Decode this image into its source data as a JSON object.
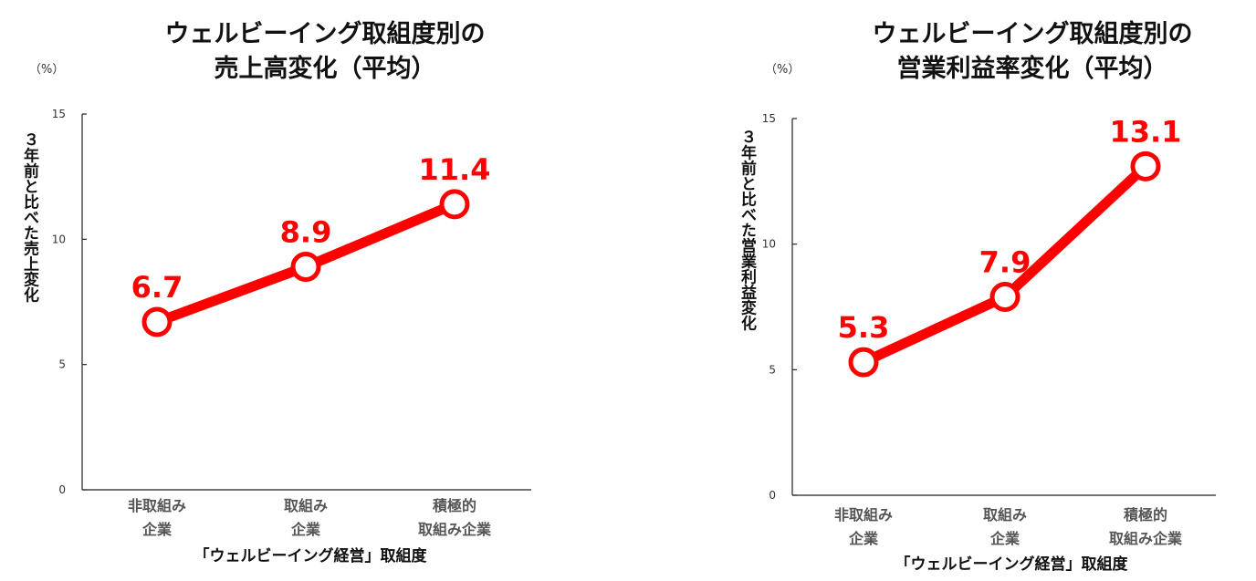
{
  "colors": {
    "series": "#ff0000",
    "axis": "#222222",
    "text": "#111111",
    "category": "#555555"
  },
  "chart_data": [
    {
      "type": "line",
      "title_lines": [
        "ウェルビーイング取組度別の",
        "売上高変化（平均）"
      ],
      "unit": "（%）",
      "ylabel": "３年前と比べた売上変化",
      "xlabel": "「ウェルビーイング経営」取組度",
      "categories": [
        [
          "非取組み",
          "企業"
        ],
        [
          "取組み",
          "企業"
        ],
        [
          "積極的",
          "取組み企業"
        ]
      ],
      "values": [
        6.7,
        8.9,
        11.4
      ],
      "value_labels": [
        "6.7",
        "8.9",
        "11.4"
      ],
      "ylim": [
        0,
        15
      ],
      "yticks": [
        0,
        5,
        10,
        15
      ]
    },
    {
      "type": "line",
      "title_lines": [
        "ウェルビーイング取組度別の",
        "営業利益率変化（平均）"
      ],
      "unit": "（%）",
      "ylabel": "３年前と比べた営業利益変化",
      "xlabel": "「ウェルビーイング経営」取組度",
      "categories": [
        [
          "非取組み",
          "企業"
        ],
        [
          "取組み",
          "企業"
        ],
        [
          "積極的",
          "取組み企業"
        ]
      ],
      "values": [
        5.3,
        7.9,
        13.1
      ],
      "value_labels": [
        "5.3",
        "7.9",
        "13.1"
      ],
      "ylim": [
        0,
        15
      ],
      "yticks": [
        0,
        5,
        10,
        15
      ]
    }
  ]
}
